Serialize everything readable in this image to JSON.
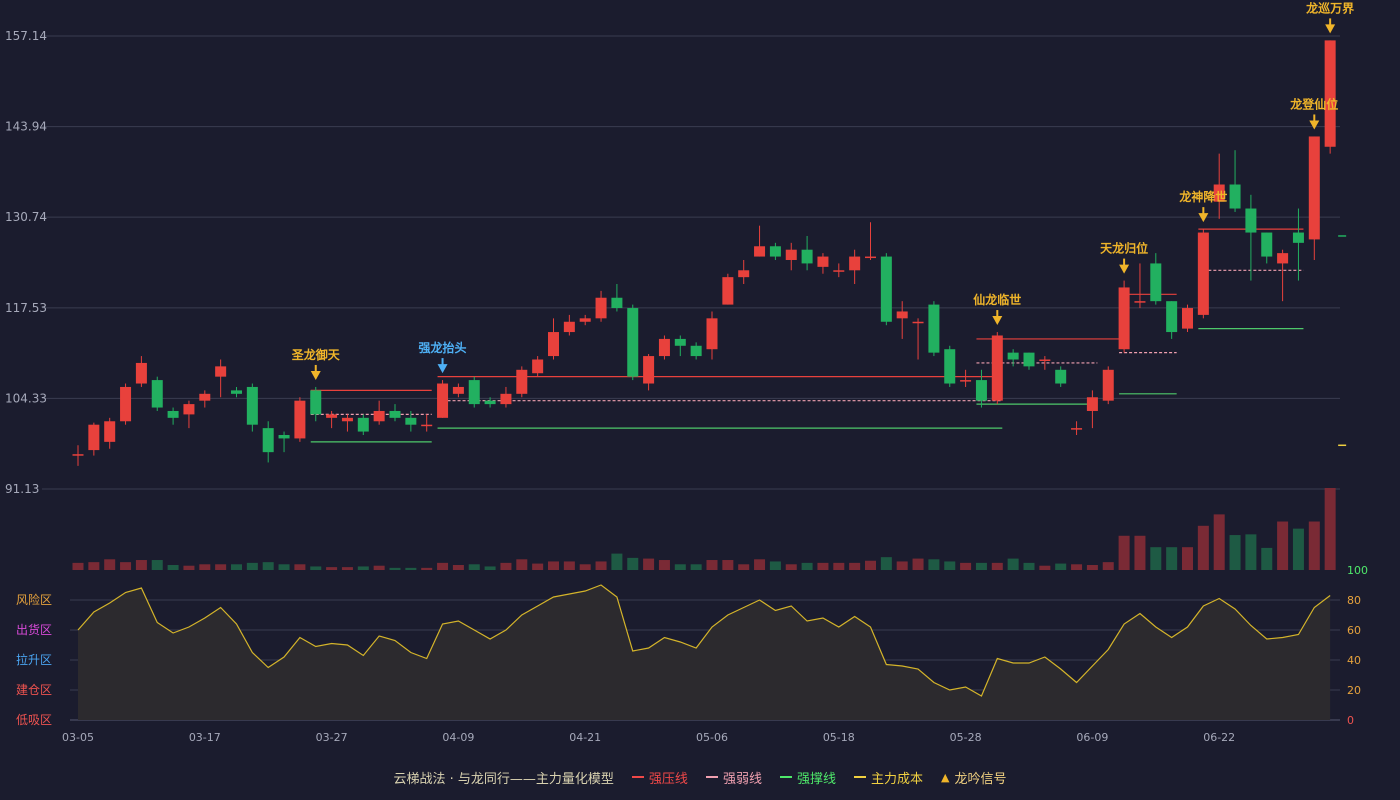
{
  "chart_data": {
    "type": "candlestick",
    "price_axis": {
      "ticks": [
        157.14,
        143.94,
        130.74,
        117.53,
        104.33,
        91.13
      ],
      "range": [
        91.13,
        157.14
      ]
    },
    "oscillator_axis": {
      "ticks": [
        100,
        80,
        60,
        40,
        20,
        0
      ],
      "range": [
        0,
        100
      ]
    },
    "zones": [
      {
        "label": "风险区",
        "color": "#e6a23c"
      },
      {
        "label": "出货区",
        "color": "#d84ad8"
      },
      {
        "label": "拉升区",
        "color": "#4aa3f0"
      },
      {
        "label": "建仓区",
        "color": "#ef5350"
      },
      {
        "label": "低吸区",
        "color": "#ef5350"
      }
    ],
    "date_labels": [
      {
        "i": 0,
        "label": "03-05"
      },
      {
        "i": 8,
        "label": "03-17"
      },
      {
        "i": 16,
        "label": "03-27"
      },
      {
        "i": 24,
        "label": "04-09"
      },
      {
        "i": 32,
        "label": "04-21"
      },
      {
        "i": 40,
        "label": "05-06"
      },
      {
        "i": 48,
        "label": "05-18"
      },
      {
        "i": 56,
        "label": "05-28"
      },
      {
        "i": 64,
        "label": "06-09"
      },
      {
        "i": 72,
        "label": "06-22"
      }
    ],
    "candles": [
      [
        96.0,
        96.2,
        94.5,
        97.5
      ],
      [
        96.8,
        100.5,
        96.0,
        100.8
      ],
      [
        98.0,
        101.0,
        97.0,
        101.5
      ],
      [
        101.0,
        106.0,
        100.5,
        106.5
      ],
      [
        106.5,
        109.5,
        106.0,
        110.5
      ],
      [
        107.0,
        103.0,
        102.5,
        107.5
      ],
      [
        102.5,
        101.5,
        100.5,
        103.0
      ],
      [
        102.0,
        103.5,
        100.0,
        104.0
      ],
      [
        104.0,
        105.0,
        103.0,
        105.5
      ],
      [
        107.5,
        109.0,
        104.5,
        110.0
      ],
      [
        105.5,
        105.0,
        104.5,
        106.0
      ],
      [
        106.0,
        100.5,
        99.5,
        106.5
      ],
      [
        100.0,
        96.5,
        95.0,
        101.0
      ],
      [
        99.0,
        98.5,
        96.5,
        99.5
      ],
      [
        98.5,
        104.0,
        98.0,
        104.5
      ],
      [
        105.5,
        102.0,
        101.0,
        106.0
      ],
      [
        101.5,
        102.0,
        100.0,
        102.5
      ],
      [
        101.0,
        101.5,
        99.5,
        102.0
      ],
      [
        101.5,
        99.5,
        99.0,
        102.0
      ],
      [
        101.0,
        102.5,
        100.5,
        104.0
      ],
      [
        102.5,
        101.5,
        101.0,
        103.5
      ],
      [
        101.5,
        100.5,
        99.5,
        102.5
      ],
      [
        100.5,
        100.5,
        99.5,
        102.0
      ],
      [
        101.5,
        106.5,
        101.5,
        107.0
      ],
      [
        105.0,
        106.0,
        104.5,
        106.5
      ],
      [
        107.0,
        103.5,
        103.0,
        107.5
      ],
      [
        104.0,
        103.5,
        103.0,
        104.5
      ],
      [
        103.5,
        105.0,
        103.0,
        106.0
      ],
      [
        105.0,
        108.5,
        104.5,
        109.0
      ],
      [
        108.0,
        110.0,
        107.5,
        110.5
      ],
      [
        110.5,
        114.0,
        110.0,
        116.0
      ],
      [
        114.0,
        115.5,
        113.5,
        116.5
      ],
      [
        115.5,
        116.0,
        115.0,
        116.5
      ],
      [
        116.0,
        119.0,
        115.5,
        120.0
      ],
      [
        119.0,
        117.5,
        117.0,
        121.0
      ],
      [
        117.5,
        107.5,
        107.0,
        118.0
      ],
      [
        106.5,
        110.5,
        105.5,
        110.8
      ],
      [
        110.5,
        113.0,
        110.0,
        113.5
      ],
      [
        113.0,
        112.0,
        110.5,
        113.5
      ],
      [
        112.0,
        110.5,
        110.0,
        112.5
      ],
      [
        111.5,
        116.0,
        110.0,
        117.0
      ],
      [
        118.0,
        122.0,
        118.0,
        122.5
      ],
      [
        122.0,
        123.0,
        121.0,
        124.5
      ],
      [
        125.0,
        126.5,
        125.0,
        129.5
      ],
      [
        126.5,
        125.0,
        124.5,
        127.0
      ],
      [
        124.5,
        126.0,
        123.0,
        127.0
      ],
      [
        126.0,
        124.0,
        123.0,
        128.0
      ],
      [
        123.5,
        125.0,
        122.5,
        125.5
      ],
      [
        123.0,
        123.0,
        122.0,
        124.0
      ],
      [
        123.0,
        125.0,
        121.0,
        126.0
      ],
      [
        125.0,
        125.0,
        124.5,
        130.0
      ],
      [
        125.0,
        115.5,
        115.0,
        125.5
      ],
      [
        116.0,
        117.0,
        113.0,
        118.5
      ],
      [
        115.5,
        115.5,
        110.0,
        116.0
      ],
      [
        118.0,
        111.0,
        110.5,
        118.5
      ],
      [
        111.5,
        106.5,
        106.0,
        112.0
      ],
      [
        107.0,
        107.0,
        106.0,
        108.5
      ],
      [
        107.0,
        104.0,
        103.0,
        108.5
      ],
      [
        104.0,
        113.5,
        103.5,
        114.0
      ],
      [
        111.0,
        110.0,
        109.0,
        111.5
      ],
      [
        111.0,
        109.0,
        108.5,
        111.0
      ],
      [
        110.0,
        110.0,
        108.5,
        110.5
      ],
      [
        108.5,
        106.5,
        106.0,
        109.0
      ],
      [
        100.0,
        100.0,
        99.0,
        101.0
      ],
      [
        102.5,
        104.5,
        100.0,
        105.5
      ],
      [
        104.0,
        108.5,
        103.5,
        109.0
      ],
      [
        111.5,
        120.5,
        111.0,
        121.5
      ],
      [
        118.5,
        118.5,
        117.5,
        124.0
      ],
      [
        124.0,
        118.5,
        118.0,
        125.5
      ],
      [
        118.5,
        114.0,
        113.0,
        118.5
      ],
      [
        114.5,
        117.5,
        114.0,
        118.0
      ],
      [
        116.5,
        128.5,
        116.0,
        129.0
      ],
      [
        133.0,
        135.5,
        130.5,
        140.0
      ],
      [
        135.5,
        132.0,
        131.5,
        140.5
      ],
      [
        132.0,
        128.5,
        121.5,
        134.0
      ],
      [
        128.5,
        125.0,
        124.0,
        128.5
      ],
      [
        124.0,
        125.5,
        118.5,
        126.0
      ],
      [
        128.5,
        127.0,
        121.5,
        132.0
      ],
      [
        127.5,
        142.5,
        124.5,
        142.5
      ],
      [
        141.0,
        156.5,
        140.0,
        156.5
      ]
    ],
    "volumes": [
      10,
      11,
      15,
      11,
      14,
      14,
      7,
      6,
      8,
      8,
      8,
      10,
      11,
      8,
      8,
      5,
      4,
      4,
      5,
      6,
      3,
      3,
      3,
      10,
      7,
      8,
      5,
      10,
      15,
      9,
      12,
      12,
      8,
      12,
      23,
      17,
      16,
      14,
      8,
      8,
      14,
      14,
      8,
      15,
      12,
      8,
      10,
      10,
      10,
      10,
      13,
      18,
      12,
      16,
      15,
      12,
      10,
      10,
      10,
      16,
      10,
      6,
      9,
      8,
      7,
      11,
      48,
      48,
      32,
      32,
      32,
      62,
      78,
      49,
      50,
      31,
      68,
      58,
      68,
      115
    ],
    "oscillator": [
      60,
      72,
      78,
      85,
      88,
      65,
      58,
      62,
      68,
      75,
      64,
      45,
      35,
      42,
      55,
      49,
      51,
      50,
      43,
      56,
      53,
      45,
      41,
      64,
      66,
      60,
      54,
      60,
      70,
      76,
      82,
      84,
      86,
      90,
      82,
      46,
      48,
      55,
      52,
      48,
      62,
      70,
      75,
      80,
      73,
      76,
      66,
      68,
      62,
      69,
      62,
      37,
      36,
      34,
      25,
      20,
      22,
      16,
      41,
      38,
      38,
      42,
      34,
      25,
      36,
      47,
      64,
      71,
      62,
      55,
      62,
      76,
      81,
      74,
      63,
      54,
      55,
      57,
      75,
      83
    ],
    "strong_pressure_lines": [
      [
        15,
        22,
        105.5
      ],
      [
        23,
        58,
        107.5
      ],
      [
        57,
        66,
        113.0
      ],
      [
        66,
        69,
        119.5
      ],
      [
        71,
        77,
        129.0
      ]
    ],
    "strong_weak_lines": [
      [
        15,
        22,
        102.0
      ],
      [
        23,
        58,
        104.0
      ],
      [
        57,
        64,
        109.5
      ],
      [
        66,
        69,
        111.0
      ],
      [
        71,
        77,
        123.0
      ]
    ],
    "support_lines": [
      [
        15,
        22,
        98.0
      ],
      [
        23,
        58,
        100.0
      ],
      [
        57,
        64,
        103.5
      ],
      [
        66,
        69,
        105.0
      ],
      [
        71,
        77,
        114.5
      ]
    ],
    "cost_markers": [
      {
        "i": 79,
        "y": 97.5
      },
      {
        "i": 79,
        "y": 128.0
      }
    ],
    "signals": [
      {
        "i": 15,
        "label": "圣龙御天",
        "color": "#f0b52a"
      },
      {
        "i": 23,
        "label": "强龙抬头",
        "color": "#4eb0f5"
      },
      {
        "i": 58,
        "label": "仙龙临世",
        "color": "#f0b52a"
      },
      {
        "i": 66,
        "label": "天龙归位",
        "color": "#f0b52a"
      },
      {
        "i": 71,
        "label": "龙神降世",
        "color": "#f0b52a"
      },
      {
        "i": 78,
        "label": "龙登仙位",
        "color": "#f0b52a"
      },
      {
        "i": 79,
        "label": "龙巡万界",
        "color": "#f0b52a"
      }
    ],
    "colors": {
      "up": "#e8413c",
      "down": "#22b060",
      "oscillator": "#d4b42a",
      "grid": "#3a3c50",
      "axis_text": "#a6a9ba"
    }
  },
  "legend": {
    "title": "云梯战法 · 与龙同行——主力量化模型",
    "items": [
      {
        "label": "强压线",
        "color": "#f04848",
        "style": "solid"
      },
      {
        "label": "强弱线",
        "color": "#f0a0b0",
        "style": "dashed"
      },
      {
        "label": "强撑线",
        "color": "#4ee86a",
        "style": "solid"
      },
      {
        "label": "主力成本",
        "color": "#f0d040",
        "style": "dashed"
      },
      {
        "label": "龙吟信号",
        "color": "#f0b52a",
        "style": "triangle"
      }
    ]
  }
}
